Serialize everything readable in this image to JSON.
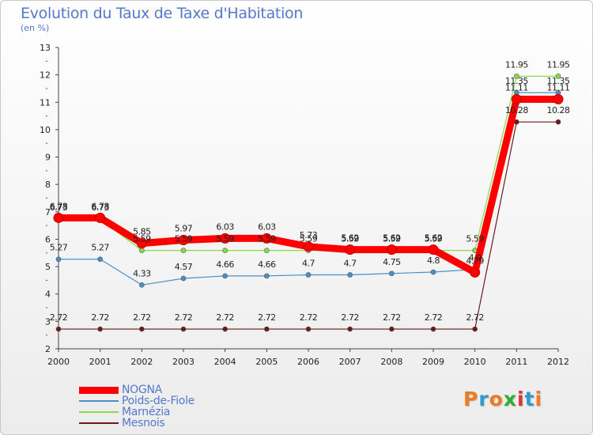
{
  "chart_data": {
    "type": "line",
    "title": "Evolution du Taux de Taxe d'Habitation",
    "subtitle": "(en %)",
    "x": [
      "2000",
      "2001",
      "2002",
      "2003",
      "2004",
      "2005",
      "2006",
      "2007",
      "2008",
      "2009",
      "2010",
      "2011",
      "2012"
    ],
    "ylim": [
      2,
      13
    ],
    "yticks": [
      2,
      3,
      4,
      5,
      6,
      7,
      8,
      9,
      10,
      11,
      12,
      13
    ],
    "grid": false,
    "legend_position": "bottom-left",
    "series": [
      {
        "name": "NOGNA",
        "color": "#ff0000",
        "values": [
          6.78,
          6.78,
          5.85,
          5.97,
          6.03,
          6.03,
          5.73,
          5.62,
          5.62,
          5.62,
          4.79,
          11.11,
          11.11
        ],
        "labels": [
          "6.78",
          "6.78",
          "5.85",
          "5.97",
          "6.03",
          "6.03",
          "5.73",
          "5.62",
          "5.62",
          "5.62",
          "4.79",
          "11.11",
          "11.11"
        ]
      },
      {
        "name": "Poids-de-Fiole",
        "color": "#4a90c8",
        "values": [
          5.27,
          5.27,
          4.33,
          4.57,
          4.66,
          4.66,
          4.7,
          4.7,
          4.75,
          4.8,
          4.9,
          11.35,
          11.35
        ],
        "labels": [
          "5.27",
          "5.27",
          "4.33",
          "4.57",
          "4.66",
          "4.66",
          "4.7",
          "4.7",
          "4.75",
          "4.8",
          "4.9",
          "11.35",
          "11.35"
        ]
      },
      {
        "name": "Marnézia",
        "color": "#88dd44",
        "values": [
          6.73,
          6.73,
          5.59,
          5.59,
          5.59,
          5.59,
          5.59,
          5.59,
          5.59,
          5.59,
          5.59,
          11.95,
          11.95
        ],
        "labels": [
          "6.73",
          "6.73",
          "5.59",
          "5.59",
          "5.59",
          "5.59",
          "5.59",
          "5.59",
          "5.59",
          "5.59",
          "5.59",
          "11.95",
          "11.95"
        ]
      },
      {
        "name": "Mesnois",
        "color": "#6b1a1a",
        "values": [
          2.72,
          2.72,
          2.72,
          2.72,
          2.72,
          2.72,
          2.72,
          2.72,
          2.72,
          2.72,
          2.72,
          10.28,
          10.28
        ],
        "labels": [
          "2.72",
          "2.72",
          "2.72",
          "2.72",
          "2.72",
          "2.72",
          "2.72",
          "2.72",
          "2.72",
          "2.72",
          "2.72",
          "10.28",
          "10.28"
        ]
      }
    ]
  },
  "brand": {
    "text": "Proxiti",
    "colors": [
      "#ee7a22",
      "#3399cc",
      "#ee7a22",
      "#33aa33",
      "#dd3333",
      "#3399cc",
      "#ee7a22"
    ]
  }
}
